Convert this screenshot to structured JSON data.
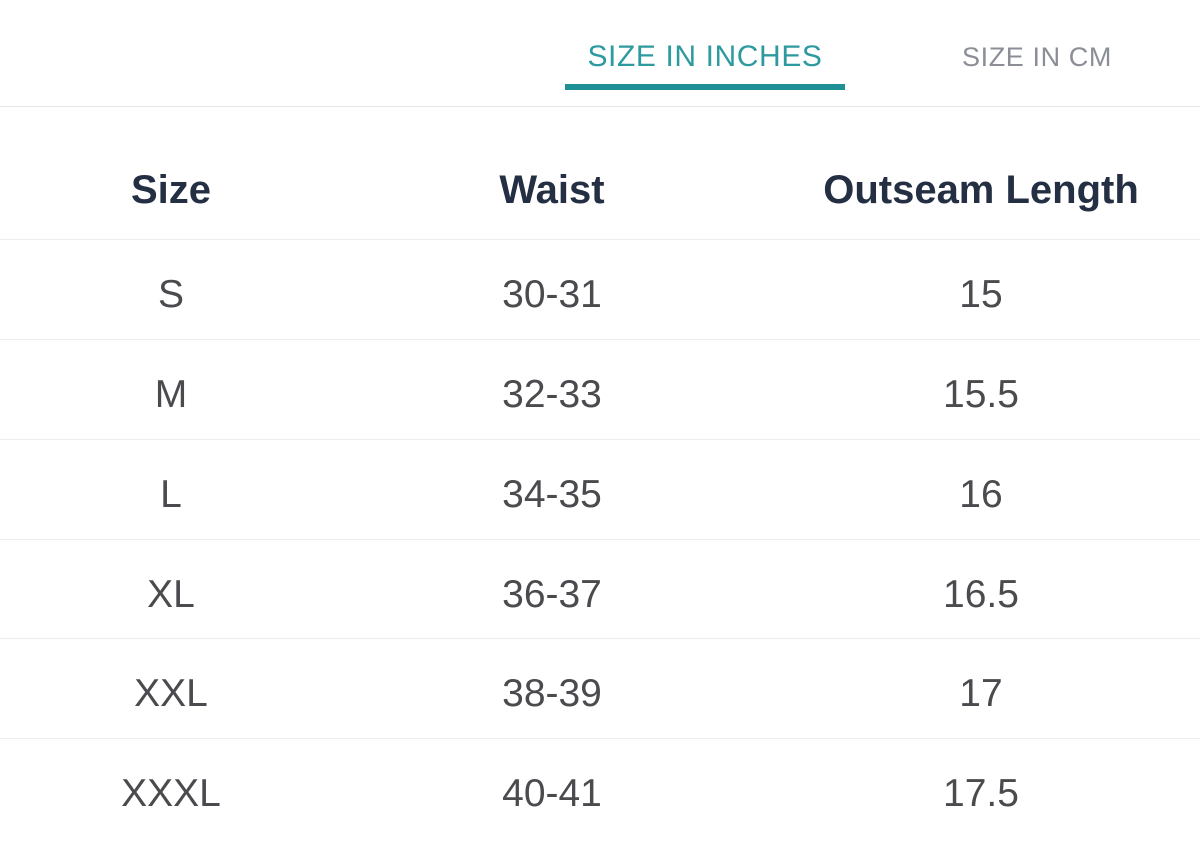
{
  "tabs": [
    {
      "label": "SIZE IN INCHES",
      "active": true
    },
    {
      "label": "SIZE IN CM",
      "active": false
    }
  ],
  "table": {
    "headers": [
      "Size",
      "Waist",
      "Outseam Length"
    ],
    "rows": [
      [
        "S",
        "30-31",
        "15"
      ],
      [
        "M",
        "32-33",
        "15.5"
      ],
      [
        "L",
        "34-35",
        "16"
      ],
      [
        "XL",
        "36-37",
        "16.5"
      ],
      [
        "XXL",
        "38-39",
        "17"
      ],
      [
        "XXXL",
        "40-41",
        "17.5"
      ]
    ]
  },
  "colors": {
    "active_tab_text": "#2E9AA0",
    "active_tab_underline": "#1F9094",
    "inactive_tab_text": "#8B8E96",
    "header_text": "#242F44",
    "body_text": "#4B4B4F",
    "row_divider": "#ECECEC",
    "tabbar_border": "#E5E5E5",
    "background": "#FFFFFF"
  }
}
